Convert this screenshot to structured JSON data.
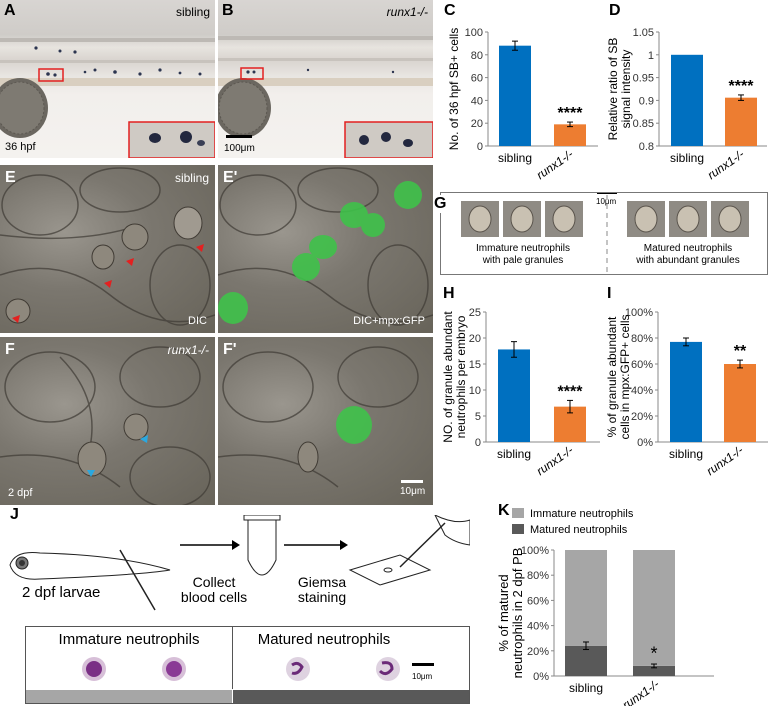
{
  "panels": {
    "A": {
      "label": "A",
      "condition": "sibling",
      "stage": "36 hpf"
    },
    "B": {
      "label": "B",
      "condition": "runx1-/-",
      "scalebar": "100μm"
    },
    "C": {
      "label": "C"
    },
    "D": {
      "label": "D"
    },
    "E": {
      "label": "E",
      "condition": "sibling",
      "mode": "DIC"
    },
    "E2": {
      "label": "E'",
      "mode": "DIC+mpx:GFP"
    },
    "F": {
      "label": "F",
      "condition": "runx1-/-",
      "stage": "2 dpf"
    },
    "F2": {
      "label": "F'",
      "scalebar": "10μm"
    },
    "G": {
      "label": "G",
      "scalebar": "10μm",
      "left_caption": "Immature neutrophils\nwith pale granules",
      "right_caption": "Matured neutrophils\nwith abundant granules"
    },
    "H": {
      "label": "H"
    },
    "I": {
      "label": "I"
    },
    "J": {
      "label": "J",
      "step1": "2 dpf larvae",
      "step2": "Collect\nblood cells",
      "step3": "Giemsa\nstaining",
      "box_left": "Immature neutrophils",
      "box_right": "Matured neutrophils",
      "scalebar": "10μm"
    },
    "K": {
      "label": "K"
    }
  },
  "colors": {
    "sibling": "#0070c0",
    "runx1": "#ed7d31",
    "immature": "#a6a6a6",
    "matured": "#595959",
    "red_marker": "#e32020",
    "blue_marker": "#2aa8e0",
    "gfp": "#3fc24a"
  },
  "chart_data": [
    {
      "panel": "C",
      "type": "bar",
      "categories": [
        "sibling",
        "runx1-/-"
      ],
      "values": [
        88,
        19
      ],
      "errors": [
        4,
        2
      ],
      "ylabel": "No. of 36 hpf SB+ cells",
      "ylim": [
        0,
        100
      ],
      "yticks": [
        "0",
        "20",
        "40",
        "60",
        "80",
        "100"
      ],
      "annotation": "****"
    },
    {
      "panel": "D",
      "type": "bar",
      "categories": [
        "sibling",
        "runx1-/-"
      ],
      "values": [
        1.0,
        0.906
      ],
      "errors": [
        0,
        0.006
      ],
      "ylabel": "Relative ratio of SB signal intensity",
      "ylim": [
        0.8,
        1.05
      ],
      "yticks": [
        "0.8",
        "0.85",
        "0.9",
        "0.95",
        "1",
        "1.05"
      ],
      "annotation": "****"
    },
    {
      "panel": "H",
      "type": "bar",
      "categories": [
        "sibling",
        "runx1-/-"
      ],
      "values": [
        17.8,
        6.8
      ],
      "errors": [
        1.5,
        1.2
      ],
      "ylabel": "NO. of  granule abundant neutrophils per embryo",
      "ylim": [
        0,
        25
      ],
      "yticks": [
        "0",
        "5",
        "10",
        "15",
        "20",
        "25"
      ],
      "annotation": "****"
    },
    {
      "panel": "I",
      "type": "bar",
      "categories": [
        "sibling",
        "runx1-/-"
      ],
      "values": [
        77,
        60
      ],
      "errors": [
        3,
        3
      ],
      "ylabel": "% of granule abundant cells in mpx:GFP+ cells",
      "ylim": [
        0,
        100
      ],
      "yticks": [
        "0%",
        "20%",
        "40%",
        "60%",
        "80%",
        "100%"
      ],
      "annotation": "**"
    },
    {
      "panel": "K",
      "type": "bar",
      "stacked": true,
      "categories": [
        "sibling",
        "runx1-/-"
      ],
      "series": [
        {
          "name": "Matured neutrophils",
          "values": [
            24,
            8
          ],
          "errors": [
            3,
            1.5
          ]
        },
        {
          "name": "Immature neutrophils",
          "values": [
            76,
            92
          ]
        }
      ],
      "ylabel": "% of matured neutrophils in 2 dpf PB",
      "ylim": [
        0,
        100
      ],
      "yticks": [
        "0%",
        "20%",
        "40%",
        "60%",
        "80%",
        "100%"
      ],
      "annotation": "*",
      "legend": "top"
    }
  ]
}
